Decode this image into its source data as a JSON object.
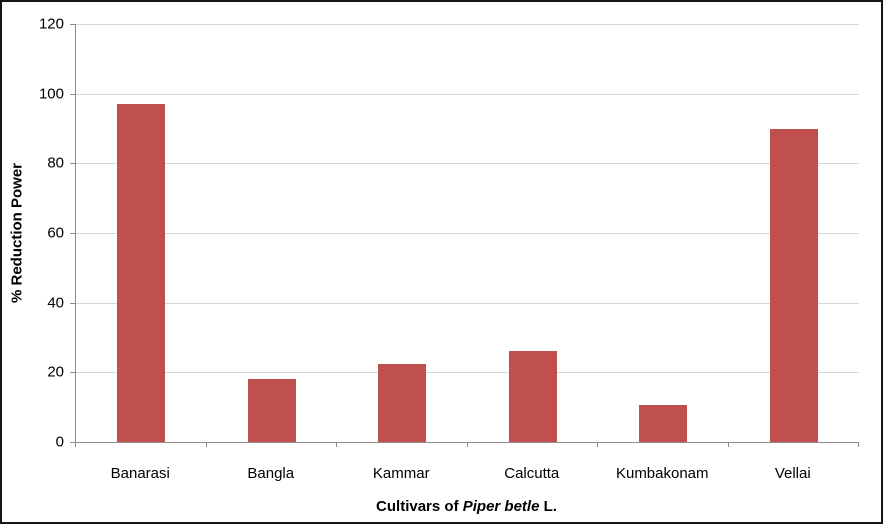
{
  "chart_data": {
    "type": "bar",
    "title": "",
    "categories": [
      "Banarasi",
      "Bangla",
      "Kammar",
      "Calcutta",
      "Kumbakonam",
      "Vellai"
    ],
    "values": [
      97,
      18,
      22.5,
      26,
      10.5,
      90
    ],
    "ylabel": "% Reduction Power",
    "xlabel_plain": "Cultivars of Piper betle L.",
    "xlabel_parts": [
      {
        "text": "Cultivars of ",
        "italic": false
      },
      {
        "text": "Piper betle",
        "italic": true
      },
      {
        "text": " L.",
        "italic": false
      }
    ],
    "ylim": [
      0,
      120
    ],
    "yticks": [
      0,
      20,
      40,
      60,
      80,
      100,
      120
    ],
    "grid": true,
    "legend": "none",
    "bar_color": "#C0504D",
    "gridline_color": "#D6D6D6",
    "axis_color": "#8C8C8C",
    "text_color": "#000000"
  }
}
